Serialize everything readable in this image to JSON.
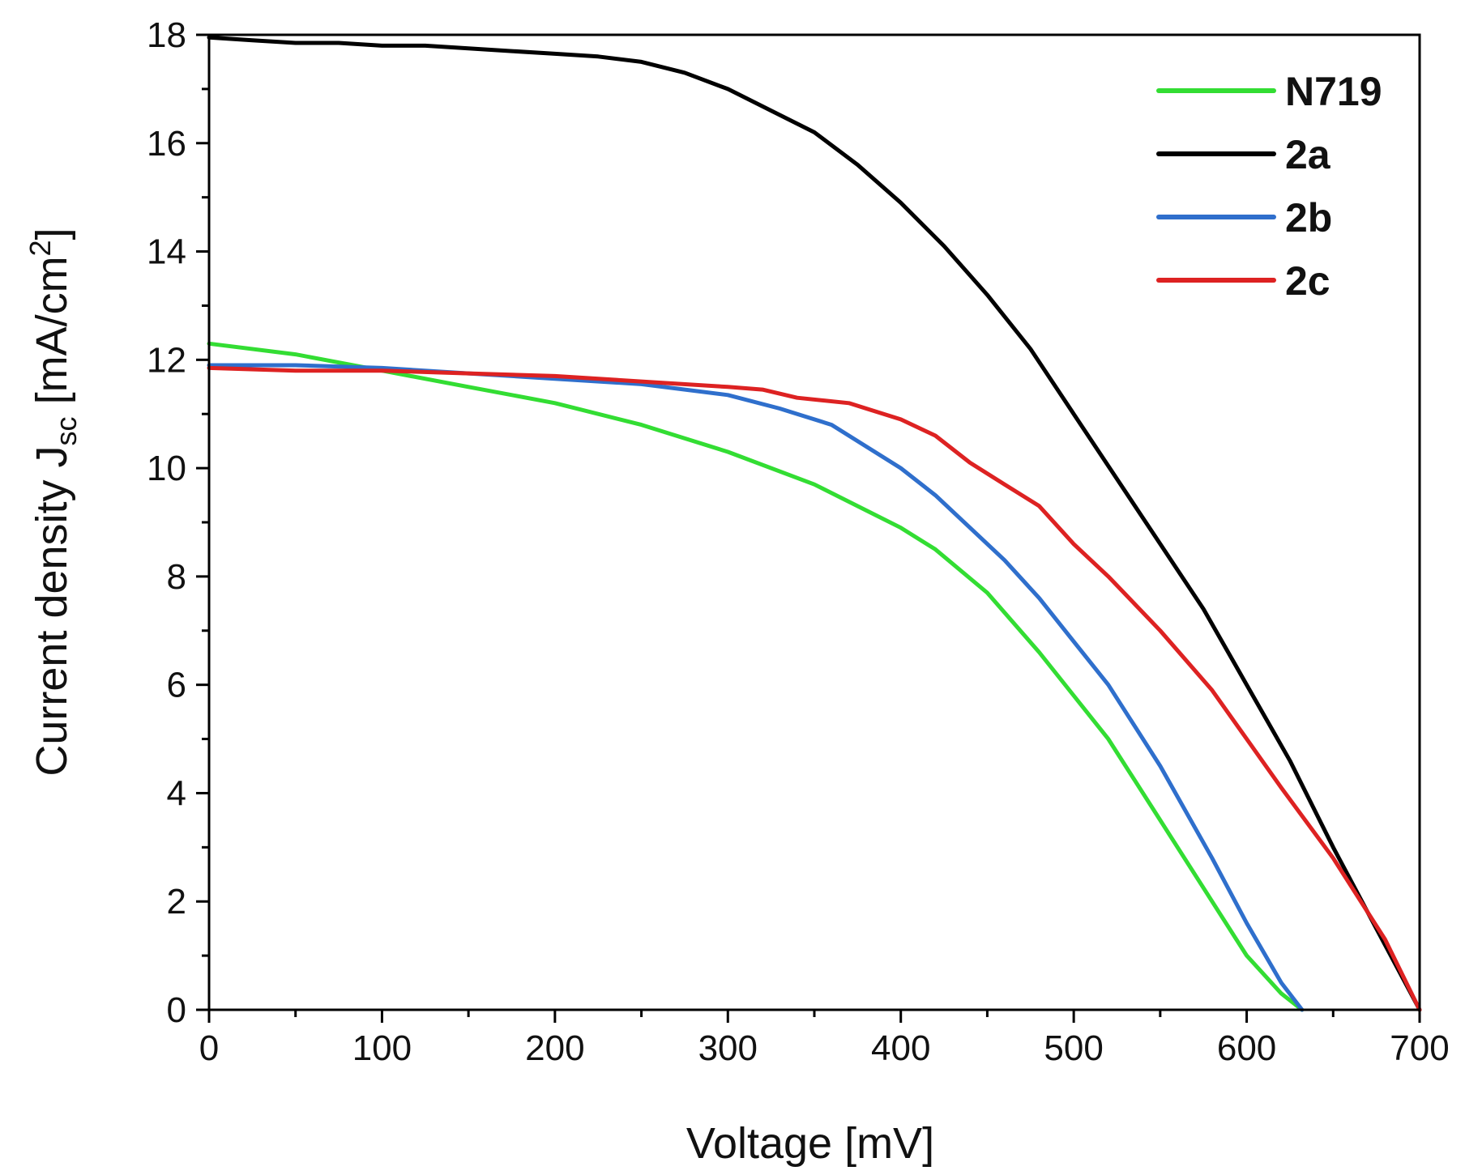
{
  "chart_data": {
    "type": "line",
    "xlabel": "Voltage  [mV]",
    "ylabel": {
      "main": "Current density J",
      "subscript": "sc",
      "unit_prefix": " [mA/cm",
      "superscript": "2",
      "unit_suffix": "]"
    },
    "xlim": [
      0,
      700
    ],
    "ylim": [
      0,
      18
    ],
    "x_ticks": [
      "0",
      "100",
      "200",
      "300",
      "400",
      "500",
      "600",
      "700"
    ],
    "y_ticks": [
      "0",
      "2",
      "4",
      "6",
      "8",
      "10",
      "12",
      "14",
      "16",
      "18"
    ],
    "grid": false,
    "legend_position": "top-right",
    "series": [
      {
        "name": "N719",
        "color": "#33dd33",
        "x": [
          0,
          50,
          100,
          150,
          200,
          250,
          300,
          350,
          400,
          420,
          450,
          480,
          500,
          520,
          550,
          580,
          600,
          620,
          632
        ],
        "y": [
          12.3,
          12.1,
          11.8,
          11.5,
          11.2,
          10.8,
          10.3,
          9.7,
          8.9,
          8.5,
          7.7,
          6.6,
          5.8,
          5.0,
          3.5,
          2.0,
          1.0,
          0.3,
          0
        ]
      },
      {
        "name": "2a",
        "color": "#000000",
        "x": [
          0,
          25,
          50,
          75,
          100,
          125,
          150,
          175,
          200,
          225,
          250,
          275,
          300,
          325,
          350,
          375,
          400,
          425,
          450,
          475,
          500,
          525,
          550,
          575,
          600,
          625,
          650,
          675,
          700
        ],
        "y": [
          17.95,
          17.9,
          17.85,
          17.85,
          17.8,
          17.8,
          17.75,
          17.7,
          17.65,
          17.6,
          17.5,
          17.3,
          17.0,
          16.6,
          16.2,
          15.6,
          14.9,
          14.1,
          13.2,
          12.2,
          11.0,
          9.8,
          8.6,
          7.4,
          6.0,
          4.6,
          3.0,
          1.5,
          0
        ]
      },
      {
        "name": "2b",
        "color": "#2f6fcc",
        "x": [
          0,
          50,
          100,
          150,
          200,
          250,
          300,
          330,
          360,
          380,
          400,
          420,
          440,
          460,
          480,
          500,
          520,
          550,
          580,
          600,
          620,
          632
        ],
        "y": [
          11.9,
          11.9,
          11.85,
          11.75,
          11.65,
          11.55,
          11.35,
          11.1,
          10.8,
          10.4,
          10.0,
          9.5,
          8.9,
          8.3,
          7.6,
          6.8,
          6.0,
          4.5,
          2.8,
          1.6,
          0.5,
          0
        ]
      },
      {
        "name": "2c",
        "color": "#dd2222",
        "x": [
          0,
          50,
          100,
          150,
          200,
          250,
          300,
          320,
          340,
          370,
          400,
          420,
          440,
          460,
          480,
          500,
          520,
          550,
          580,
          600,
          620,
          650,
          680,
          700
        ],
        "y": [
          11.85,
          11.8,
          11.8,
          11.75,
          11.7,
          11.6,
          11.5,
          11.45,
          11.3,
          11.2,
          10.9,
          10.6,
          10.1,
          9.7,
          9.3,
          8.6,
          8.0,
          7.0,
          5.9,
          5.0,
          4.1,
          2.8,
          1.3,
          0
        ]
      }
    ]
  }
}
